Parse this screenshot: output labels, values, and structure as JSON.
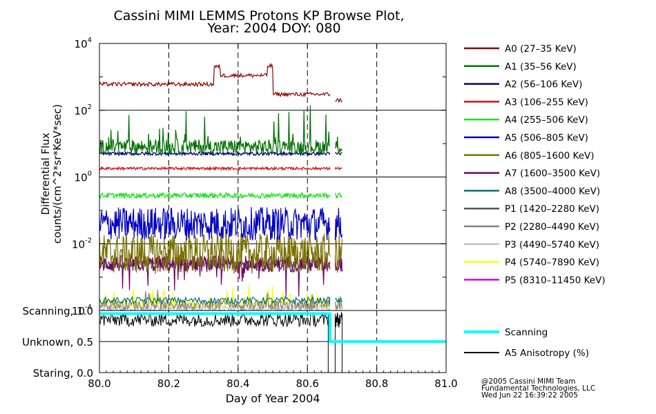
{
  "chart_data": {
    "type": "line",
    "title": "Cassini MIMI LEMMS Protons KP Browse Plot,",
    "subtitle": "Year: 2004 DOY: 080",
    "xlabel": "Day of Year 2004",
    "xlim": [
      80.0,
      81.0
    ],
    "x_ticks": [
      "80.0",
      "80.2",
      "80.4",
      "80.6",
      "80.8",
      "81.0"
    ],
    "upper_panel": {
      "ylabel_line1": "Differential Flux",
      "ylabel_line2": "counts/(cm^2*sr*KeV*sec)",
      "yscale": "log",
      "ylim": [
        0.0001,
        10000
      ],
      "y_ticks": [
        {
          "base": "10",
          "exp": "4"
        },
        {
          "base": "10",
          "exp": "2"
        },
        {
          "base": "10",
          "exp": "0"
        },
        {
          "base": "10",
          "exp": "-2"
        },
        {
          "base": "10",
          "exp": "-4"
        }
      ],
      "data_x_range": [
        80.0,
        80.7
      ],
      "data_gap": [
        80.665,
        80.68
      ],
      "series": [
        {
          "name": "A0 (27–35 KeV)",
          "color": "#8b0000",
          "segments": [
            [
              80.0,
              80.33,
              600
            ],
            [
              80.33,
              80.35,
              2000
            ],
            [
              80.35,
              80.485,
              1100
            ],
            [
              80.485,
              80.5,
              2100
            ],
            [
              80.5,
              80.665,
              300
            ],
            [
              80.68,
              80.7,
              200
            ]
          ]
        },
        {
          "name": "A1 (35–56 KeV)",
          "color": "#007000",
          "level": 8
        },
        {
          "name": "A2 (56–106 KeV)",
          "color": "#000070",
          "level": 5
        },
        {
          "name": "A3 (106–255 KeV)",
          "color": "#d01010",
          "level": 1.8
        },
        {
          "name": "A4 (255–506 KeV)",
          "color": "#20e020",
          "level": 0.28
        },
        {
          "name": "A5 (506–805 KeV)",
          "color": "#0000c0",
          "level": 0.04
        },
        {
          "name": "A6 (805–1600 KeV)",
          "color": "#7a7000",
          "level": 0.005
        },
        {
          "name": "A7 (1600–3500 KeV)",
          "color": "#700070",
          "level": 0.0025
        },
        {
          "name": "A8 (3500–4000 KeV)",
          "color": "#007070",
          "level": 0.0002
        },
        {
          "name": "P1 (1420–2280 KeV)",
          "color": "#555555",
          "level": 0.0025
        },
        {
          "name": "P2 (2280–4490 KeV)",
          "color": "#808080",
          "level": 0.00015
        },
        {
          "name": "P3 (4490–5740 KeV)",
          "color": "#c0c0c0",
          "level": 0.00012
        },
        {
          "name": "P4 (5740–7890 KeV)",
          "color": "#ffff00",
          "level": 0.00015
        },
        {
          "name": "P5 (8310–11450 KeV)",
          "color": "#e000e0",
          "level": 0.0001
        }
      ]
    },
    "lower_panel": {
      "y_ticks": [
        "Scanning, 1.0",
        "Unknown, 0.5",
        "Staring, 0.0"
      ],
      "ylim": [
        0.0,
        1.0
      ],
      "series": [
        {
          "name": "Scanning",
          "color": "#00ffff",
          "points": [
            [
              80.0,
              0.95
            ],
            [
              80.665,
              0.95
            ],
            [
              80.665,
              0.5
            ],
            [
              81.0,
              0.5
            ]
          ]
        },
        {
          "name": "A5 Anisotropy (%)",
          "color": "#000000",
          "level": 0.85,
          "xrange": [
            80.0,
            80.7
          ]
        }
      ]
    }
  },
  "credits": [
    "@2005 Cassini MIMI Team",
    "Fundamental Technologies, LLC",
    "Wed Jun 22 16:39:22 2005"
  ]
}
